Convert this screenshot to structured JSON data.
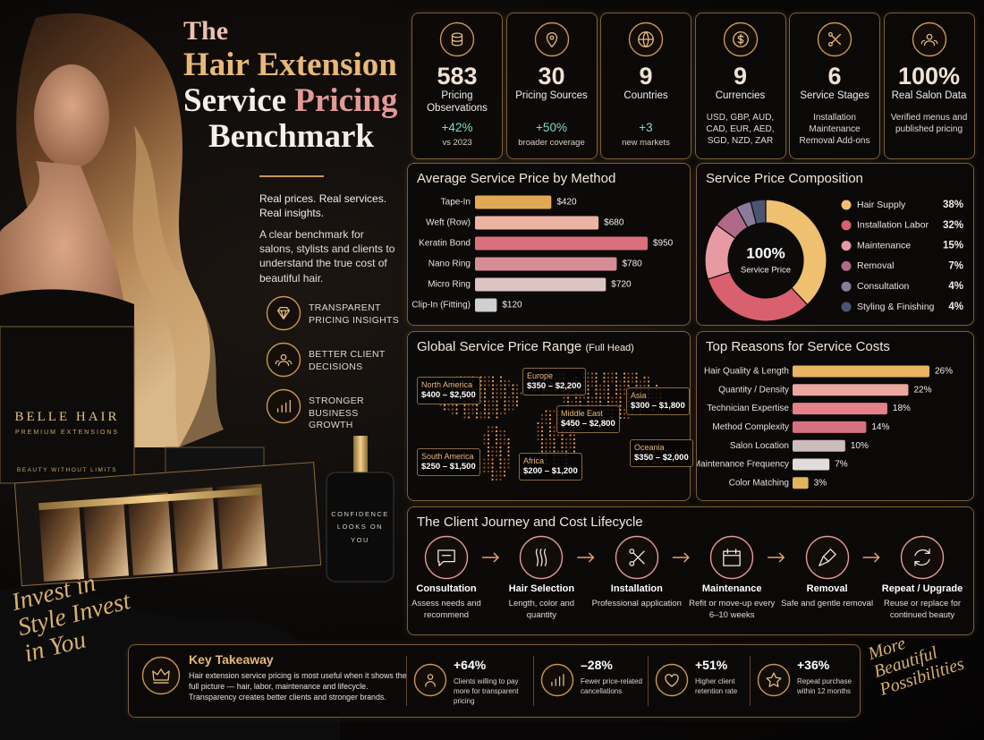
{
  "hero": {
    "title_parts": [
      "The",
      "Hair Extension",
      "Service",
      "Pricing",
      "Benchmark"
    ],
    "tagline": "Real prices. Real services. Real insights.",
    "description": "A clear benchmark for salons, stylists and clients to understand the true cost of beautiful hair.",
    "features": [
      "TRANSPARENT PRICING INSIGHTS",
      "BETTER CLIENT DECISIONS",
      "STRONGER BUSINESS GROWTH"
    ]
  },
  "product": {
    "brand": "BELLE HAIR",
    "subtitle": "PREMIUM EXTENSIONS",
    "slogan": "BEAUTY WITHOUT LIMITS",
    "bottle": "CONFIDENCE LOOKS ON YOU",
    "script_left": "Invest in Style Invest in You",
    "script_right": "More Beautiful Possibilities"
  },
  "stats": [
    {
      "value": "583",
      "label": "Pricing Observations",
      "change": "+42%",
      "note": "vs 2023"
    },
    {
      "value": "30",
      "label": "Pricing Sources",
      "change": "+50%",
      "note": "broader coverage"
    },
    {
      "value": "9",
      "label": "Countries",
      "change": "+3",
      "note": "new markets"
    },
    {
      "value": "9",
      "label": "Currencies",
      "note": "USD, GBP, AUD, CAD, EUR, AED, SGD, NZD, ZAR"
    },
    {
      "value": "6",
      "label": "Service Stages",
      "note": "Installation Maintenance Removal Add-ons"
    },
    {
      "value": "100%",
      "label": "Real Salon Data",
      "note": "Verified menus and published pricing"
    }
  ],
  "chart_data": [
    {
      "type": "bar",
      "orientation": "horizontal",
      "title": "Average Service Price by Method",
      "categories": [
        "Tape-In",
        "Weft (Row)",
        "Keratin Bond",
        "Nano Ring",
        "Micro Ring",
        "Clip-In (Fitting)"
      ],
      "values": [
        420,
        680,
        950,
        780,
        720,
        120
      ],
      "value_labels": [
        "$420",
        "$680",
        "$950",
        "$780",
        "$720",
        "$120"
      ],
      "colors": [
        "#e2a955",
        "#ecb3a3",
        "#d9707c",
        "#d78c95",
        "#dcc4c4",
        "#d0d0d0"
      ]
    },
    {
      "type": "pie",
      "title": "Service Price Composition",
      "center_label": "100%",
      "center_sublabel": "Service Price",
      "categories": [
        "Hair Supply",
        "Installation Labor",
        "Maintenance",
        "Removal",
        "Consultation",
        "Styling & Finishing"
      ],
      "values": [
        38,
        32,
        15,
        7,
        4,
        4
      ],
      "value_labels": [
        "38%",
        "32%",
        "15%",
        "7%",
        "4%",
        "4%"
      ],
      "colors": [
        "#efc06f",
        "#d9606e",
        "#e79aa2",
        "#b06a88",
        "#8c7a9c",
        "#4d5472"
      ]
    },
    {
      "type": "bar",
      "orientation": "horizontal",
      "title": "Top Reasons for Service Costs",
      "categories": [
        "Hair Quality & Length",
        "Quantity / Density",
        "Technician Expertise",
        "Method Complexity",
        "Salon Location",
        "Maintenance Frequency",
        "Color Matching"
      ],
      "values": [
        26,
        22,
        18,
        14,
        10,
        7,
        3
      ],
      "value_labels": [
        "26%",
        "22%",
        "18%",
        "14%",
        "10%",
        "7%",
        "3%"
      ],
      "colors": [
        "#e8b462",
        "#eba6a0",
        "#e3828a",
        "#d4707f",
        "#cdbcbc",
        "#e0dcdc",
        "#e2b45c"
      ]
    }
  ],
  "price_map": {
    "title": "Global Service Price Range",
    "subtitle": "(Full Head)",
    "regions": [
      {
        "name": "North America",
        "range": "$400 – $2,500"
      },
      {
        "name": "Europe",
        "range": "$350 – $2,200"
      },
      {
        "name": "Asia",
        "range": "$300 – $1,800"
      },
      {
        "name": "Middle East",
        "range": "$450 – $2,800"
      },
      {
        "name": "South America",
        "range": "$250 – $1,500"
      },
      {
        "name": "Africa",
        "range": "$200 – $1,200"
      },
      {
        "name": "Oceania",
        "range": "$350 – $2,000"
      }
    ]
  },
  "journey": {
    "title": "The Client Journey and Cost Lifecycle",
    "steps": [
      {
        "name": "Consultation",
        "desc": "Assess needs and recommend"
      },
      {
        "name": "Hair Selection",
        "desc": "Length, color and quantity"
      },
      {
        "name": "Installation",
        "desc": "Professional application"
      },
      {
        "name": "Maintenance",
        "desc": "Refit or move-up every 6–10 weeks"
      },
      {
        "name": "Removal",
        "desc": "Safe and gentle removal"
      },
      {
        "name": "Repeat / Upgrade",
        "desc": "Reuse or replace for continued beauty"
      }
    ]
  },
  "takeaway": {
    "title": "Key Takeaway",
    "text": "Hair extension service pricing is most useful when it shows the full picture — hair, labor, maintenance and lifecycle. Transparency creates better clients and stronger brands.",
    "metrics": [
      {
        "value": "+64%",
        "label": "Clients willing to pay more for transparent pricing"
      },
      {
        "value": "–28%",
        "label": "Fewer price-related cancellations"
      },
      {
        "value": "+51%",
        "label": "Higher client retention rate"
      },
      {
        "value": "+36%",
        "label": "Repeat purchase within 12 months"
      }
    ]
  }
}
